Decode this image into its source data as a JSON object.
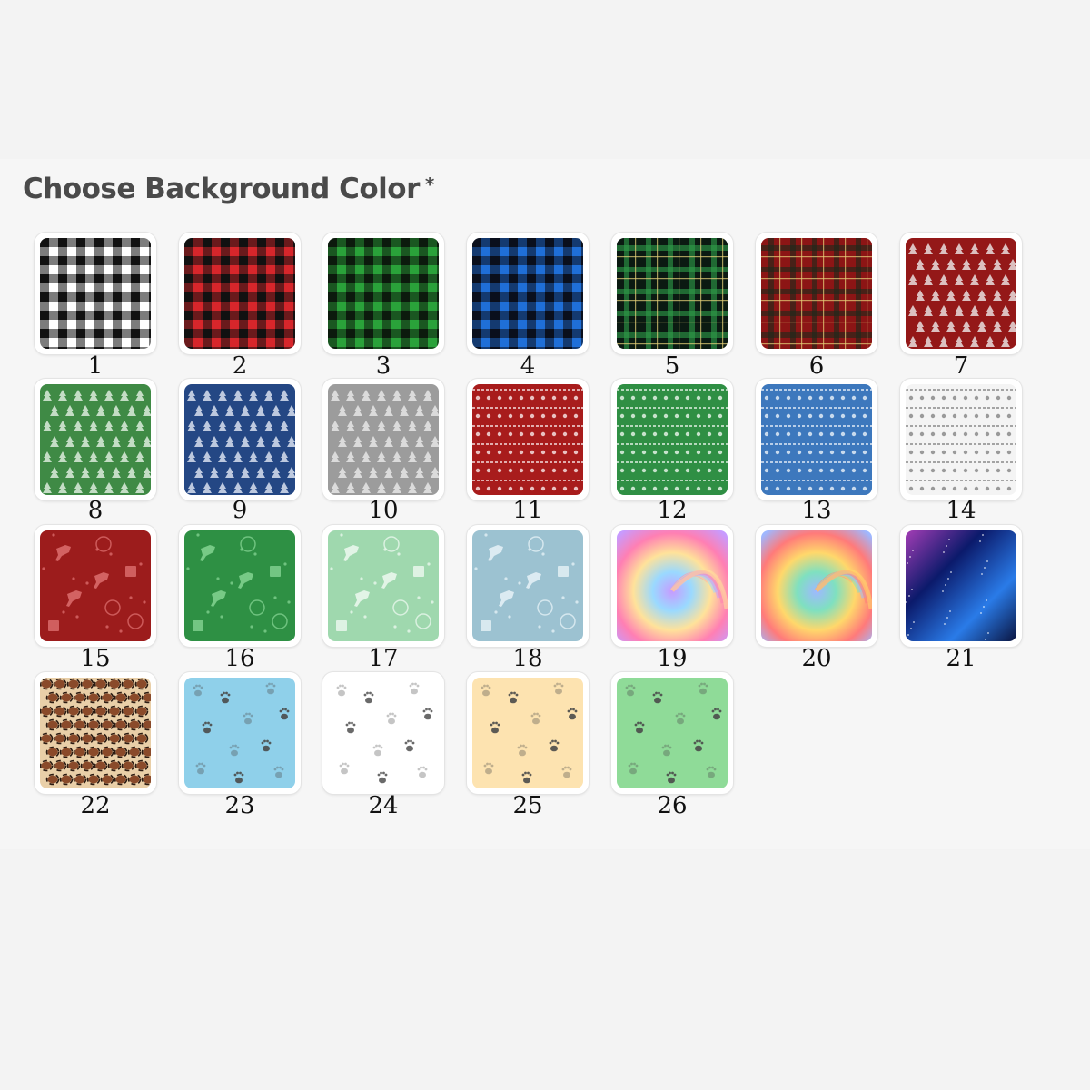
{
  "section": {
    "title": "Choose Background Color",
    "required_mark": "*"
  },
  "swatches": [
    {
      "number": "1",
      "pattern": "gingham",
      "colors": [
        "#ffffff",
        "#111111"
      ]
    },
    {
      "number": "2",
      "pattern": "gingham",
      "colors": [
        "#d7262b",
        "#111111"
      ]
    },
    {
      "number": "3",
      "pattern": "gingham",
      "colors": [
        "#2aa23a",
        "#0c1a0d"
      ]
    },
    {
      "number": "4",
      "pattern": "gingham",
      "colors": [
        "#1f6fd8",
        "#0a0f1c"
      ]
    },
    {
      "number": "5",
      "pattern": "tartan",
      "colors": [
        "#0b1a12",
        "#2f9e4a"
      ]
    },
    {
      "number": "6",
      "pattern": "tartan",
      "colors": [
        "#8c1515",
        "#1a2a1a"
      ]
    },
    {
      "number": "7",
      "pattern": "trees",
      "colors": [
        "#941818",
        "#e9dede"
      ]
    },
    {
      "number": "8",
      "pattern": "trees",
      "colors": [
        "#3f8a45",
        "#dcebdc"
      ]
    },
    {
      "number": "9",
      "pattern": "trees",
      "colors": [
        "#244784",
        "#d8e0ee"
      ]
    },
    {
      "number": "10",
      "pattern": "trees",
      "colors": [
        "#9c9c9c",
        "#e6e6e6"
      ]
    },
    {
      "number": "11",
      "pattern": "sweater",
      "colors": [
        "#a81c1c",
        "#f4dede"
      ]
    },
    {
      "number": "12",
      "pattern": "sweater",
      "colors": [
        "#2f8f44",
        "#e2f1e4"
      ]
    },
    {
      "number": "13",
      "pattern": "sweater",
      "colors": [
        "#3d78bd",
        "#e1ebf6"
      ]
    },
    {
      "number": "14",
      "pattern": "sweater",
      "colors": [
        "#f4f4f4",
        "#8a8a8a"
      ]
    },
    {
      "number": "15",
      "pattern": "reindeer",
      "colors": [
        "#9c1c1c",
        "#d96a6a"
      ]
    },
    {
      "number": "16",
      "pattern": "reindeer",
      "colors": [
        "#2e9044",
        "#7fd08e"
      ]
    },
    {
      "number": "17",
      "pattern": "reindeer",
      "colors": [
        "#9fd8ae",
        "#e9f7ec"
      ]
    },
    {
      "number": "18",
      "pattern": "reindeer",
      "colors": [
        "#9cc2d1",
        "#e3f0f5"
      ]
    },
    {
      "number": "19",
      "pattern": "tiedye",
      "colors": [
        "#ff7fb3",
        "#ffe29a",
        "#9ad9ff",
        "#c79bff"
      ]
    },
    {
      "number": "20",
      "pattern": "tiedye",
      "colors": [
        "#ff7a7a",
        "#ffd86b",
        "#7fe0c0",
        "#9fb8ff"
      ]
    },
    {
      "number": "21",
      "pattern": "galaxy",
      "colors": [
        "#0b1a6b",
        "#2a7be8",
        "#a33db5"
      ]
    },
    {
      "number": "22",
      "pattern": "leopard",
      "colors": [
        "#e9cfa8",
        "#8a4a2a",
        "#2a1a12"
      ]
    },
    {
      "number": "23",
      "pattern": "paws",
      "colors": [
        "#8fd0ea",
        "#4a4a4a"
      ]
    },
    {
      "number": "24",
      "pattern": "paws",
      "colors": [
        "#ffffff",
        "#5a5a5a"
      ]
    },
    {
      "number": "25",
      "pattern": "paws",
      "colors": [
        "#fde3b0",
        "#4a4a4a"
      ]
    },
    {
      "number": "26",
      "pattern": "paws",
      "colors": [
        "#8fdb98",
        "#4a4a4a"
      ]
    }
  ]
}
